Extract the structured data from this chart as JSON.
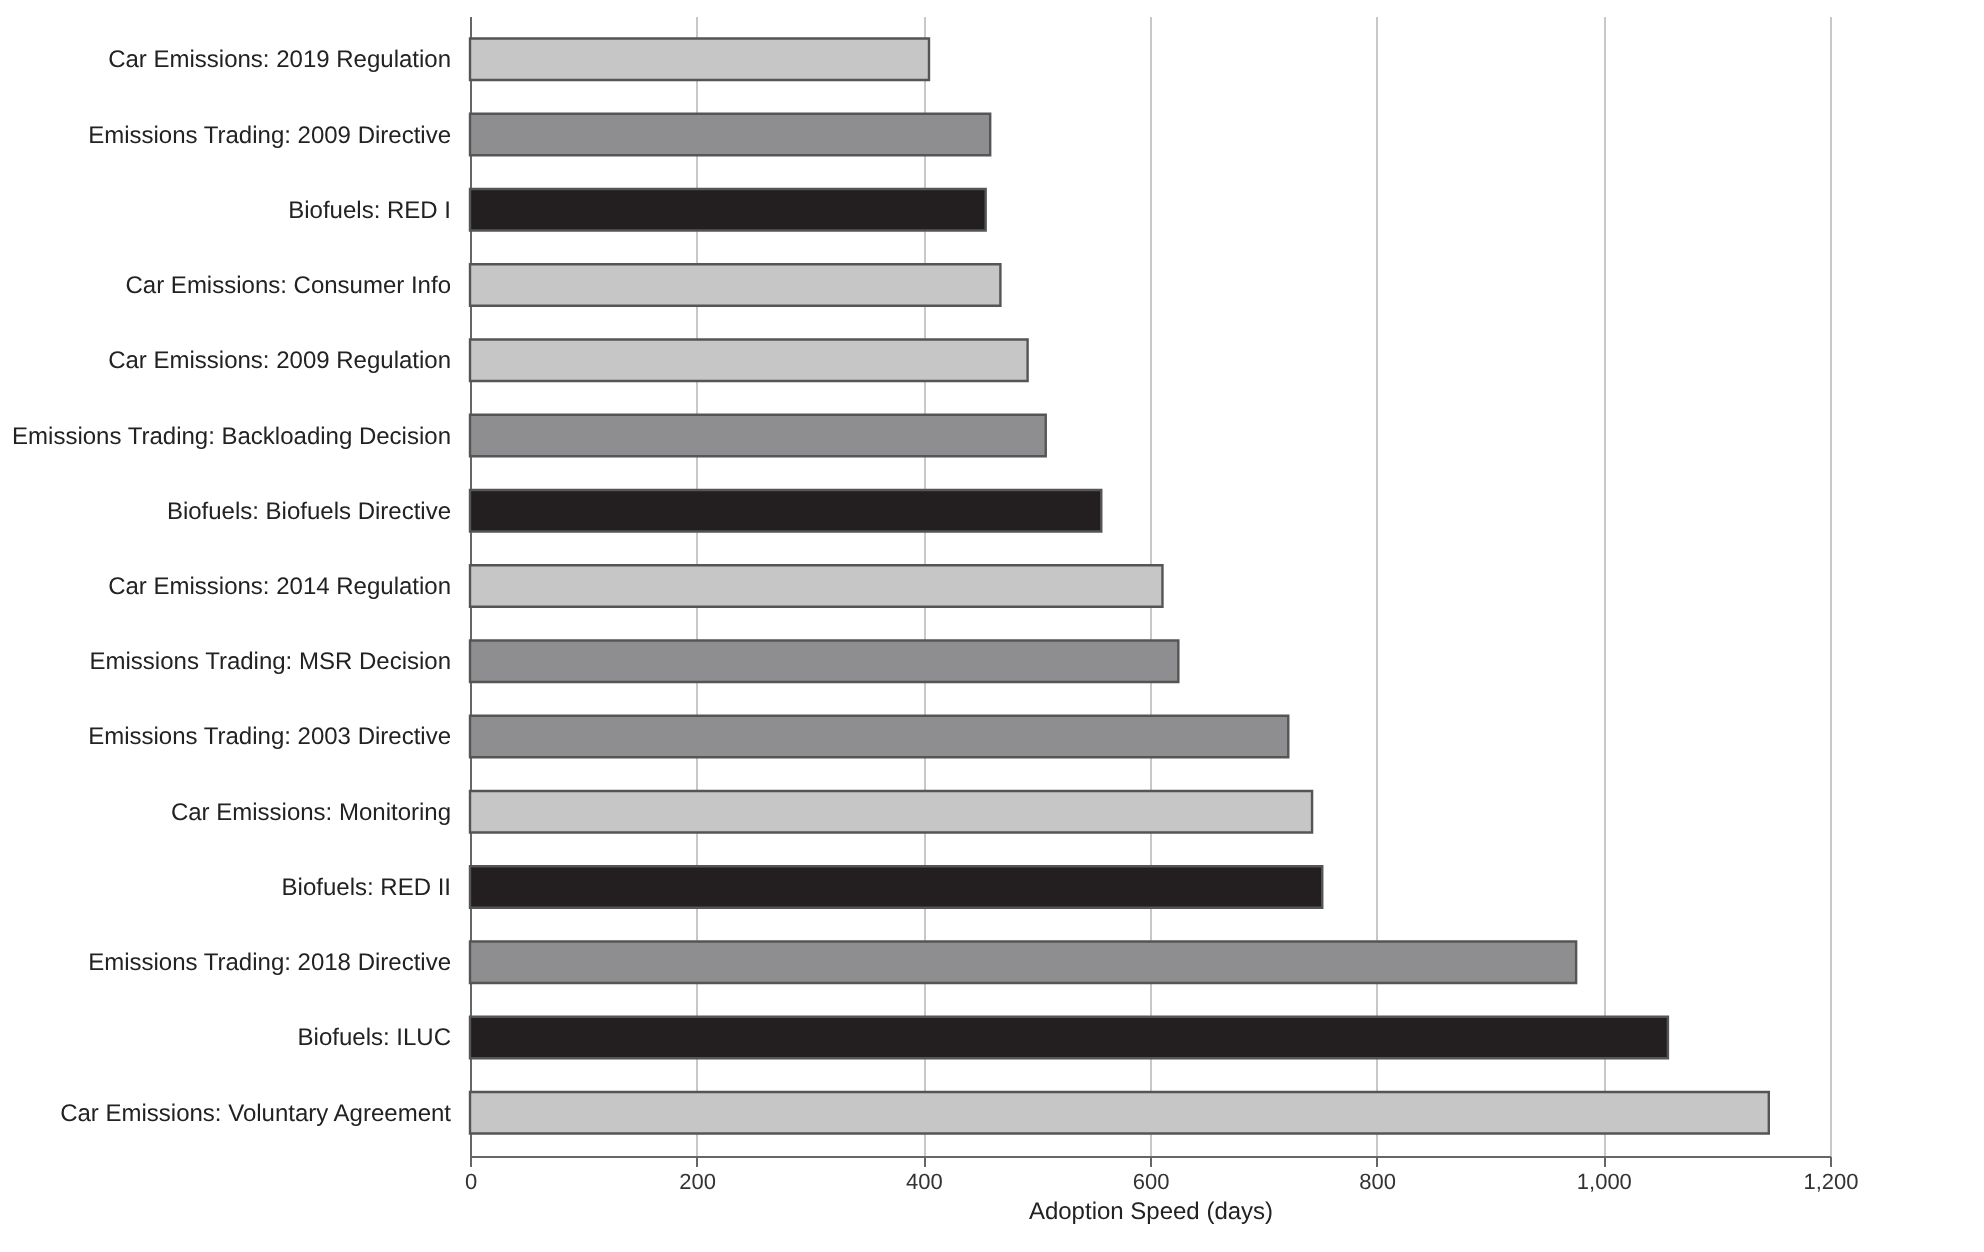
{
  "chart_data": {
    "type": "bar",
    "orientation": "horizontal",
    "xlabel": "Adoption Speed (days)",
    "categories": [
      "Car Emissions: 2019 Regulation",
      "Emissions Trading: 2009 Directive",
      "Biofuels: RED I",
      "Car Emissions: Consumer Info",
      "Car Emissions: 2009 Regulation",
      "Emissions Trading: Backloading Decision",
      "Biofuels: Biofuels Directive",
      "Car Emissions: 2014 Regulation",
      "Emissions Trading: MSR Decision",
      "Emissions Trading: 2003 Directive",
      "Car Emissions: Monitoring",
      "Biofuels: RED II",
      "Emissions Trading: 2018 Directive",
      "Biofuels: ILUC",
      "Car Emissions: Voluntary Agreement"
    ],
    "values": [
      405,
      459,
      455,
      468,
      492,
      508,
      557,
      611,
      625,
      722,
      743,
      752,
      976,
      1057,
      1146
    ],
    "colors": [
      "#c6c6c6",
      "#8e8e90",
      "#231f20",
      "#c6c6c6",
      "#c6c6c6",
      "#8e8e90",
      "#231f20",
      "#c6c6c6",
      "#8e8e90",
      "#8e8e90",
      "#c6c6c6",
      "#231f20",
      "#8e8e90",
      "#231f20",
      "#c6c6c6"
    ],
    "xlim": [
      0,
      1200
    ],
    "xticks": [
      0,
      200,
      400,
      600,
      800,
      {
        "value": 1000,
        "label": "1,000"
      },
      {
        "value": 1200,
        "label": "1,200"
      }
    ],
    "grid": "x"
  }
}
